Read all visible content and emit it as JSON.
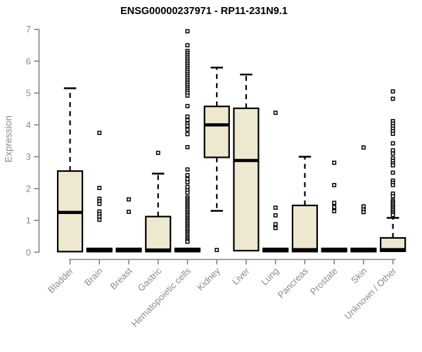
{
  "chart_data": {
    "type": "boxplot",
    "title": "ENSG00000237971 - RP11-231N9.1",
    "ylabel": "Expression",
    "xlabel": "",
    "ylim": [
      0,
      7
    ],
    "yticks": [
      0,
      1,
      2,
      3,
      4,
      5,
      6,
      7
    ],
    "grid": false,
    "legend": false,
    "categories": [
      "Bladder",
      "Brain",
      "Breast",
      "Gastric",
      "Hematopoietic cells",
      "Kidney",
      "Liver",
      "Lung",
      "Pancreas",
      "Prostate",
      "Skin",
      "Unknown / Other"
    ],
    "series": [
      {
        "label": "Bladder",
        "stats": {
          "low": 0.02,
          "q1": 0.02,
          "med": 1.25,
          "q3": 2.55,
          "high": 5.15
        },
        "outliers": []
      },
      {
        "label": "Brain",
        "stats": {
          "low": 0.02,
          "q1": 0.02,
          "med": 0.07,
          "q3": 0.12,
          "high": 0.12
        },
        "outliers": [
          3.75,
          2.02,
          1.68,
          1.6,
          1.52,
          1.28,
          1.2,
          1.12,
          1.02
        ]
      },
      {
        "label": "Breast",
        "stats": {
          "low": 0.02,
          "q1": 0.02,
          "med": 0.07,
          "q3": 0.12,
          "high": 0.12
        },
        "outliers": [
          1.66,
          1.27
        ]
      },
      {
        "label": "Gastric",
        "stats": {
          "low": 0.02,
          "q1": 0.02,
          "med": 0.07,
          "q3": 1.12,
          "high": 2.47
        },
        "outliers": [
          3.12
        ]
      },
      {
        "label": "Hematopoietic cells",
        "stats": {
          "low": 0.02,
          "q1": 0.02,
          "med": 0.07,
          "q3": 0.12,
          "high": 0.12
        },
        "outliers": [
          6.94,
          6.5,
          6.32,
          6.26,
          6.2,
          6.14,
          6.08,
          6.02,
          5.96,
          5.9,
          5.84,
          5.78,
          5.72,
          5.66,
          5.6,
          5.54,
          5.48,
          5.42,
          5.36,
          5.3,
          5.24,
          5.18,
          5.12,
          5.06,
          5.0,
          4.92,
          4.59,
          4.26,
          4.15,
          4.04,
          3.97,
          3.85,
          3.71,
          3.3,
          2.6,
          2.42,
          2.3,
          2.2,
          2.05,
          1.95,
          1.87,
          1.72,
          1.67,
          1.62,
          1.57,
          1.52,
          1.47,
          1.42,
          1.37,
          1.32,
          1.27,
          1.22,
          1.17,
          1.12,
          1.07,
          1.02,
          0.97,
          0.92,
          0.87,
          0.82,
          0.77,
          0.72,
          0.67,
          0.62,
          0.57,
          0.52,
          0.47,
          0.42,
          0.37,
          0.33
        ]
      },
      {
        "label": "Kidney",
        "stats": {
          "low": 1.3,
          "q1": 2.98,
          "med": 4.0,
          "q3": 4.58,
          "high": 5.8
        },
        "outliers": [
          0.07
        ]
      },
      {
        "label": "Liver",
        "stats": {
          "low": 0.05,
          "q1": 0.05,
          "med": 2.88,
          "q3": 4.52,
          "high": 5.58
        },
        "outliers": []
      },
      {
        "label": "Lung",
        "stats": {
          "low": 0.02,
          "q1": 0.02,
          "med": 0.07,
          "q3": 0.12,
          "high": 0.12
        },
        "outliers": [
          4.38,
          1.4,
          1.16,
          0.88,
          0.76
        ]
      },
      {
        "label": "Pancreas",
        "stats": {
          "low": 0.02,
          "q1": 0.02,
          "med": 0.08,
          "q3": 1.47,
          "high": 3.0
        },
        "outliers": []
      },
      {
        "label": "Prostate",
        "stats": {
          "low": 0.02,
          "q1": 0.02,
          "med": 0.07,
          "q3": 0.12,
          "high": 0.12
        },
        "outliers": [
          2.81,
          2.11,
          1.55,
          1.42,
          1.29
        ]
      },
      {
        "label": "Skin",
        "stats": {
          "low": 0.02,
          "q1": 0.02,
          "med": 0.07,
          "q3": 0.12,
          "high": 0.12
        },
        "outliers": [
          3.29,
          1.44,
          1.34,
          1.26
        ]
      },
      {
        "label": "Unknown / Other",
        "stats": {
          "low": 0.03,
          "q1": 0.03,
          "med": 0.08,
          "q3": 0.45,
          "high": 1.08
        },
        "outliers": [
          5.05,
          4.82,
          4.12,
          4.04,
          3.96,
          3.88,
          3.8,
          3.72,
          3.42,
          3.2,
          3.1,
          2.95,
          2.87,
          2.79,
          2.73,
          2.5,
          2.25,
          2.18,
          2.11,
          1.84,
          1.76,
          1.62,
          1.57,
          1.52,
          1.47,
          1.42,
          1.37,
          1.32,
          1.27,
          1.22,
          1.17
        ]
      }
    ]
  },
  "colors": {
    "box_fill": "#EDE8CF",
    "box_stroke": "#000000",
    "median": "#000000",
    "whisker": "#000000",
    "outlier_stroke": "#000000",
    "outlier_fill": "#FFFFFF",
    "axis": "#828282",
    "label": "#8C8C8C",
    "title": "#000000",
    "background": "#FFFFFF"
  }
}
